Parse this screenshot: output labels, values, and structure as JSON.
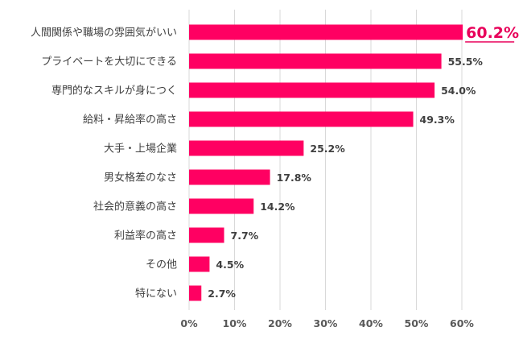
{
  "chart_data": {
    "type": "bar",
    "orientation": "horizontal",
    "title": "",
    "xlabel": "",
    "ylabel": "",
    "categories": [
      "人間関係や職場の雰囲気がいい",
      "プライベートを大切にできる",
      "専門的なスキルが身につく",
      "給料・昇給率の高さ",
      "大手・上場企業",
      "男女格差のなさ",
      "社会的意義の高さ",
      "利益率の高さ",
      "その他",
      "特にない"
    ],
    "values": [
      60.2,
      55.5,
      54.0,
      49.3,
      25.2,
      17.8,
      14.2,
      7.7,
      4.5,
      2.7
    ],
    "value_labels": [
      "60.2%",
      "55.5%",
      "54.0%",
      "49.3%",
      "25.2%",
      "17.8%",
      "14.2%",
      "7.7%",
      "4.5%",
      "2.7%"
    ],
    "xlim": [
      0,
      60
    ],
    "x_ticks": [
      "0%",
      "10%",
      "20%",
      "30%",
      "40%",
      "50%",
      "60%"
    ],
    "grid": "vertical",
    "legend": "none",
    "colors": {
      "bar": "#ff0062",
      "highlight_label": "#e8005a",
      "text": "#404040",
      "grid": "#d9d9d9"
    },
    "highlighted_index": 0
  }
}
